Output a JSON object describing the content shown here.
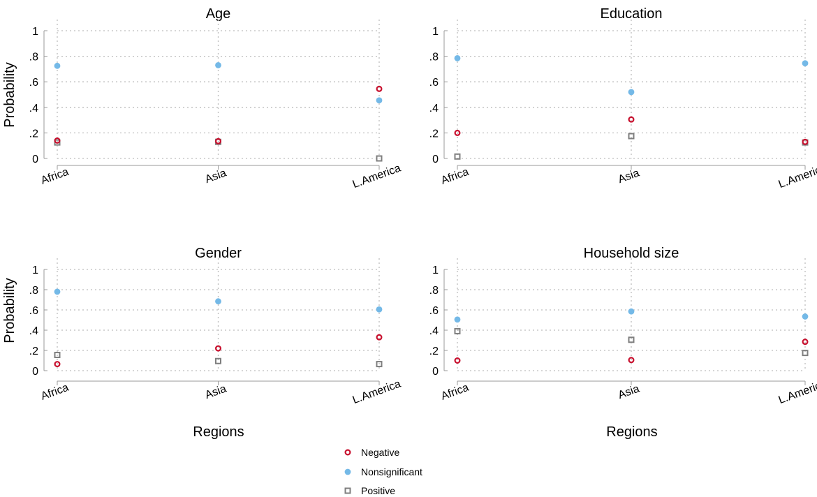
{
  "figure": {
    "ylabel": "Probability",
    "xlabel": "Regions"
  },
  "colors": {
    "negative": "#c8102e",
    "nonsignificant": "#74b9e7",
    "positive": "#7f7f7f",
    "grid": "#bdbdbd",
    "axis": "#9a9a9a"
  },
  "legend": {
    "entries": [
      "Negative",
      "Nonsignificant",
      "Positive"
    ]
  },
  "chart_data": [
    {
      "type": "scatter",
      "title": "Age",
      "categories": [
        "Africa",
        "Asia",
        "L.America"
      ],
      "ylim": [
        0,
        1
      ],
      "yticks": [
        "0",
        ".2",
        ".4",
        ".6",
        ".8",
        "1"
      ],
      "series": [
        {
          "name": "Negative",
          "values": [
            0.14,
            0.135,
            0.545
          ]
        },
        {
          "name": "Nonsignificant",
          "values": [
            0.725,
            0.73,
            0.455
          ]
        },
        {
          "name": "Positive",
          "values": [
            0.125,
            0.13,
            0.0
          ]
        }
      ]
    },
    {
      "type": "scatter",
      "title": "Education",
      "categories": [
        "Africa",
        "Asia",
        "L.America"
      ],
      "ylim": [
        0,
        1
      ],
      "yticks": [
        "0",
        ".2",
        ".4",
        ".6",
        ".8",
        "1"
      ],
      "series": [
        {
          "name": "Negative",
          "values": [
            0.2,
            0.305,
            0.13
          ]
        },
        {
          "name": "Nonsignificant",
          "values": [
            0.785,
            0.52,
            0.745
          ]
        },
        {
          "name": "Positive",
          "values": [
            0.015,
            0.175,
            0.125
          ]
        }
      ]
    },
    {
      "type": "scatter",
      "title": "Gender",
      "categories": [
        "Africa",
        "Asia",
        "L.America"
      ],
      "ylim": [
        0,
        1
      ],
      "yticks": [
        "0",
        ".2",
        ".4",
        ".6",
        ".8",
        "1"
      ],
      "series": [
        {
          "name": "Negative",
          "values": [
            0.065,
            0.22,
            0.33
          ]
        },
        {
          "name": "Nonsignificant",
          "values": [
            0.78,
            0.685,
            0.605
          ]
        },
        {
          "name": "Positive",
          "values": [
            0.155,
            0.095,
            0.065
          ]
        }
      ]
    },
    {
      "type": "scatter",
      "title": "Household size",
      "categories": [
        "Africa",
        "Asia",
        "L.America"
      ],
      "ylim": [
        0,
        1
      ],
      "yticks": [
        "0",
        ".2",
        ".4",
        ".6",
        ".8",
        "1"
      ],
      "series": [
        {
          "name": "Negative",
          "values": [
            0.1,
            0.105,
            0.285
          ]
        },
        {
          "name": "Nonsignificant",
          "values": [
            0.505,
            0.585,
            0.535
          ]
        },
        {
          "name": "Positive",
          "values": [
            0.39,
            0.305,
            0.175
          ]
        }
      ]
    }
  ]
}
